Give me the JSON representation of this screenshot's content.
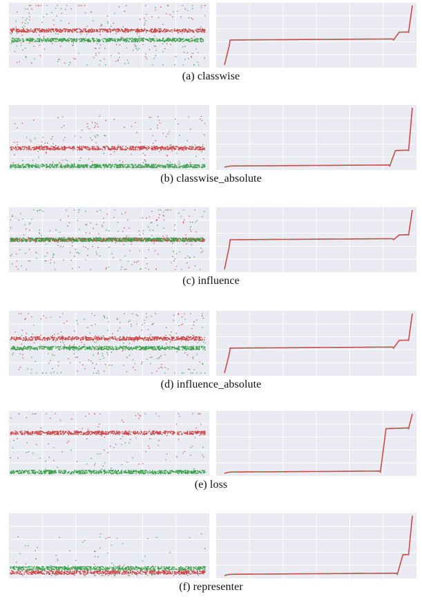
{
  "figure": {
    "colors": {
      "red": "#d04545",
      "green": "#3aa24a",
      "panel_bg": "#eaeaf2",
      "grid": "#ffffff"
    }
  },
  "chart_data": [
    {
      "type": "scatter",
      "caption": "(a) classwise",
      "left_panel": {
        "type": "scatter",
        "bands": [
          {
            "series": "red",
            "y": 0.58
          },
          {
            "series": "green",
            "y": 0.42
          }
        ],
        "spread": "wide"
      },
      "right_panel": {
        "type": "line",
        "shape": "sorted-values",
        "plateau": 0.42,
        "step_at": 0.9,
        "step_to": 0.55
      }
    },
    {
      "type": "scatter",
      "caption": "(b) classwise_absolute",
      "left_panel": {
        "type": "scatter",
        "bands": [
          {
            "series": "red",
            "y": 0.32
          },
          {
            "series": "green",
            "y": 0.02
          }
        ],
        "spread": "wide"
      },
      "right_panel": {
        "type": "line",
        "shape": "sorted-values",
        "plateau": 0.02,
        "step_at": 0.88,
        "step_to": 0.28
      }
    },
    {
      "type": "scatter",
      "caption": "(c) influence",
      "left_panel": {
        "type": "scatter",
        "bands": [
          {
            "series": "red",
            "y": 0.5
          },
          {
            "series": "green",
            "y": 0.5
          }
        ],
        "spread": "wide"
      },
      "right_panel": {
        "type": "line",
        "shape": "sorted-values",
        "plateau": 0.5,
        "step_at": 0.9,
        "step_to": 0.58
      }
    },
    {
      "type": "scatter",
      "caption": "(d) influence_absolute",
      "left_panel": {
        "type": "scatter",
        "bands": [
          {
            "series": "red",
            "y": 0.58
          },
          {
            "series": "green",
            "y": 0.42
          }
        ],
        "spread": "wide"
      },
      "right_panel": {
        "type": "line",
        "shape": "sorted-values",
        "plateau": 0.42,
        "step_at": 0.9,
        "step_to": 0.55
      }
    },
    {
      "type": "scatter",
      "caption": "(e) loss",
      "left_panel": {
        "type": "scatter",
        "bands": [
          {
            "series": "red",
            "y": 0.68
          },
          {
            "series": "green",
            "y": 0.02
          }
        ],
        "spread": "medium"
      },
      "right_panel": {
        "type": "line",
        "shape": "sorted-values",
        "plateau": 0.02,
        "step_at": 0.83,
        "step_to": 0.75
      }
    },
    {
      "type": "scatter",
      "caption": "(f) representer",
      "left_panel": {
        "type": "scatter",
        "bands": [
          {
            "series": "red",
            "y": 0.05
          },
          {
            "series": "green",
            "y": 0.12
          }
        ],
        "spread": "low"
      },
      "right_panel": {
        "type": "line",
        "shape": "sorted-values",
        "plateau": 0.02,
        "step_at": 0.92,
        "step_to": 0.35
      }
    }
  ]
}
